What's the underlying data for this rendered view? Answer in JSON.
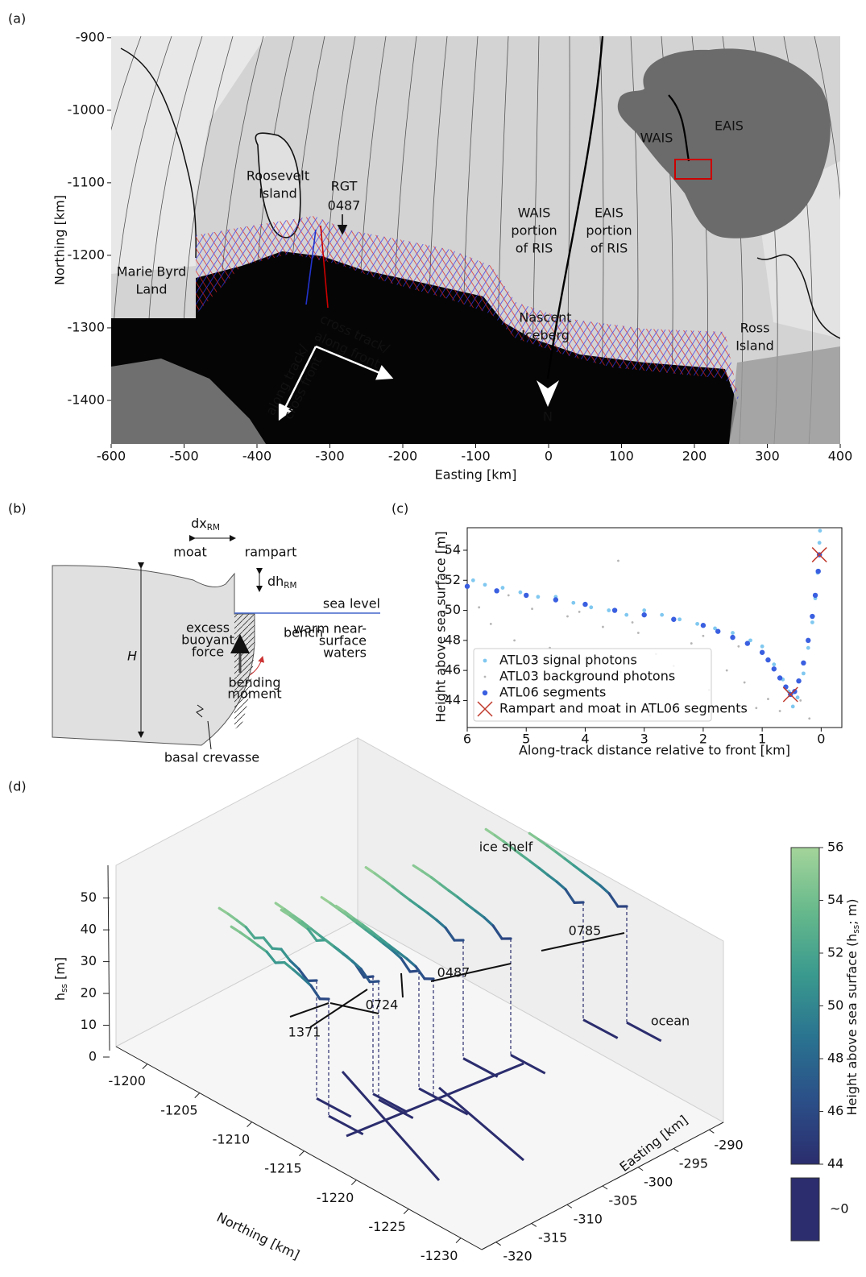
{
  "chart_data": [
    {
      "type": "map",
      "panel_label": "(a)",
      "xlabel": "Easting [km]",
      "ylabel": "Northing [km]",
      "xlim": [
        -600,
        400
      ],
      "ylim": [
        -1460,
        -898
      ],
      "xticks": [
        -600,
        -500,
        -400,
        -300,
        -200,
        -100,
        0,
        100,
        200,
        300,
        400
      ],
      "yticks": [
        -1400,
        -1300,
        -1200,
        -1100,
        -1000,
        -900
      ],
      "annotations": [
        [
          "Roosevelt",
          "Island"
        ],
        [
          "RGT",
          "0487"
        ],
        [
          "Marie Byrd",
          "Land"
        ],
        [
          "WAIS",
          "portion",
          "of RIS"
        ],
        [
          "EAIS",
          "portion",
          "of RIS"
        ],
        [
          "Nascent",
          "Iceberg"
        ],
        [
          "Ross",
          "Island"
        ],
        [
          "cross track/",
          "along front"
        ],
        [
          "along track/",
          "cross front"
        ],
        [
          "N"
        ],
        [
          "WAIS"
        ],
        [
          "EAIS"
        ]
      ]
    },
    {
      "type": "diagram",
      "panel_label": "(b)",
      "labels": {
        "dx": {
          "pre": "dx",
          "sub": "RM"
        },
        "moat": "moat",
        "rampart": "rampart",
        "dh": {
          "pre": "dh",
          "sub": "RM"
        },
        "sea_level": "sea level",
        "waters": [
          "warm near-",
          "surface",
          "waters"
        ],
        "force": [
          "excess",
          "buoyant",
          "force"
        ],
        "bench": "bench",
        "moment": [
          "bending",
          "moment"
        ],
        "H": "H",
        "crevasse": "basal crevasse"
      }
    },
    {
      "type": "scatter",
      "panel_label": "(c)",
      "xlabel": "Along-track distance relative to front [km]",
      "ylabel": "Height above sea surface [m]",
      "xlim": [
        6,
        -0.35
      ],
      "ylim": [
        42.2,
        55.5
      ],
      "xticks": [
        6,
        5,
        4,
        3,
        2,
        1,
        0
      ],
      "yticks": [
        44,
        46,
        48,
        50,
        52,
        54
      ],
      "legend": "lower left",
      "series": [
        {
          "name": "ATL03 signal photons",
          "color": "#80c8f0",
          "marker": "o",
          "x": [
            5.9,
            5.7,
            5.4,
            5.1,
            4.8,
            4.5,
            4.2,
            3.9,
            3.6,
            3.3,
            3.0,
            2.7,
            2.4,
            2.1,
            1.8,
            1.5,
            1.2,
            1.0,
            0.8,
            0.65,
            0.55,
            0.48,
            0.4,
            0.3,
            0.22,
            0.15,
            0.1,
            0.06,
            0.03,
            0.02
          ],
          "values": [
            52.0,
            51.7,
            51.5,
            51.2,
            50.9,
            50.9,
            50.5,
            50.2,
            50.0,
            49.7,
            50.0,
            49.7,
            49.4,
            49.1,
            48.8,
            48.5,
            48.0,
            47.6,
            46.4,
            45.4,
            44.6,
            43.6,
            44.2,
            45.8,
            47.5,
            49.2,
            50.8,
            52.5,
            54.5,
            55.3
          ]
        },
        {
          "name": "ATL03 background photons",
          "color": "#b5b5b5",
          "marker": "o",
          "x": [
            5.8,
            5.6,
            5.2,
            4.9,
            4.6,
            4.3,
            4.0,
            3.7,
            3.4,
            3.1,
            2.8,
            2.5,
            2.2,
            1.9,
            1.6,
            1.3,
            1.1,
            0.9,
            0.7,
            5.3,
            4.1,
            3.2,
            2.0,
            1.4,
            0.6,
            0.35,
            2.9,
            4.7,
            0.2,
            3.44
          ],
          "values": [
            50.2,
            49.1,
            48.0,
            50.1,
            47.5,
            49.6,
            46.8,
            48.9,
            45.9,
            48.5,
            47.1,
            46.3,
            47.8,
            44.7,
            46.0,
            45.2,
            43.5,
            44.1,
            43.3,
            51.0,
            49.9,
            49.2,
            48.3,
            47.6,
            45.0,
            44.0,
            43.0,
            45.4,
            42.8,
            53.3
          ]
        },
        {
          "name": "ATL06 segments",
          "color": "#3a5fe0",
          "marker": "o",
          "x": [
            6,
            5.5,
            5,
            4.5,
            4,
            3.5,
            3,
            2.5,
            2,
            1.75,
            1.5,
            1.25,
            1,
            0.9,
            0.8,
            0.7,
            0.6,
            0.52,
            0.45,
            0.38,
            0.3,
            0.22,
            0.15,
            0.1,
            0.05,
            0.03
          ],
          "values": [
            51.6,
            51.3,
            51.0,
            50.7,
            50.4,
            50.0,
            49.7,
            49.4,
            49.0,
            48.6,
            48.2,
            47.8,
            47.2,
            46.7,
            46.1,
            45.5,
            44.9,
            44.4,
            44.6,
            45.3,
            46.5,
            48.0,
            49.6,
            51.0,
            52.6,
            53.7
          ]
        },
        {
          "name": "Rampart and moat in ATL06 segments",
          "color": "#c0392b",
          "marker": "x",
          "x": [
            0.52,
            0.03
          ],
          "values": [
            44.4,
            53.7
          ]
        }
      ]
    },
    {
      "type": "line3d",
      "panel_label": "(d)",
      "xlabel": "Northing [km]",
      "ylabel": "Easting [km]",
      "zlabel": {
        "pre": "h",
        "sub": "ss",
        "post": " [m]"
      },
      "xlim": [
        -1197,
        -1232
      ],
      "xticks": [
        -1200,
        -1205,
        -1210,
        -1215,
        -1220,
        -1225,
        -1230
      ],
      "ylim": [
        -322,
        -288
      ],
      "yticks": [
        -320,
        -315,
        -310,
        -305,
        -300,
        -295,
        -290
      ],
      "zlim": [
        0,
        57
      ],
      "zticks": [
        0,
        10,
        20,
        30,
        40,
        50
      ],
      "annotations": [
        "ice shelf",
        "ocean"
      ],
      "tracks_labels": [
        "1371",
        "0724",
        "0487",
        "0785"
      ],
      "colorbar": {
        "label": {
          "pre": "Height above sea surface (h",
          "sub": "ss",
          "post": "; m)"
        },
        "lim": [
          44,
          56
        ],
        "ticks": [
          44,
          46,
          48,
          50,
          52,
          54,
          56
        ],
        "zero_label": "~0",
        "colors": [
          "#2b2d6e",
          "#2b4f88",
          "#2a7390",
          "#3a9a8e",
          "#67b98c",
          "#a4d49a"
        ]
      },
      "series": [
        {
          "values": [
            55.4,
            55.0,
            54.3,
            53.5,
            51.0,
            53.0,
            50.6,
            52.2,
            49.5,
            48.0,
            45.2,
            47.2
          ]
        },
        {
          "values": [
            55.0,
            54.6,
            54.0,
            53.2,
            52.5,
            50.0,
            52.0,
            51.0,
            49.8,
            48.4,
            45.0,
            46.8
          ]
        },
        {
          "values": [
            55.6,
            55.1,
            54.4,
            53.8,
            52.9,
            52.0,
            51.2,
            50.4,
            49.5,
            48.2,
            44.8,
            47.0
          ]
        },
        {
          "values": [
            55.2,
            54.8,
            54.0,
            53.3,
            50.5,
            52.6,
            51.7,
            50.8,
            49.9,
            48.6,
            45.3,
            47.4
          ]
        },
        {
          "values": [
            55.8,
            55.3,
            54.6,
            53.9,
            53.0,
            52.2,
            51.4,
            50.5,
            49.6,
            48.3,
            44.9,
            47.1
          ]
        },
        {
          "values": [
            55.3,
            54.9,
            54.1,
            53.5,
            52.7,
            51.8,
            50.9,
            50.1,
            49.3,
            48.1,
            45.1,
            46.9
          ]
        },
        {
          "values": [
            55.7,
            55.2,
            54.5,
            53.7,
            52.8,
            52.0,
            51.3,
            50.6,
            49.7,
            48.5,
            45.4,
            47.3
          ]
        },
        {
          "values": [
            55.1,
            54.7,
            54.2,
            53.4,
            52.6,
            51.9,
            51.0,
            50.2,
            49.4,
            48.0,
            44.7,
            46.6
          ]
        },
        {
          "values": [
            55.5,
            55.0,
            54.4,
            53.6,
            52.8,
            52.1,
            51.3,
            50.4,
            49.6,
            48.4,
            45.0,
            47.0
          ]
        },
        {
          "values": [
            55.0,
            54.5,
            53.9,
            53.2,
            52.4,
            51.6,
            50.8,
            50.0,
            49.2,
            47.9,
            44.6,
            46.5
          ]
        }
      ]
    }
  ]
}
